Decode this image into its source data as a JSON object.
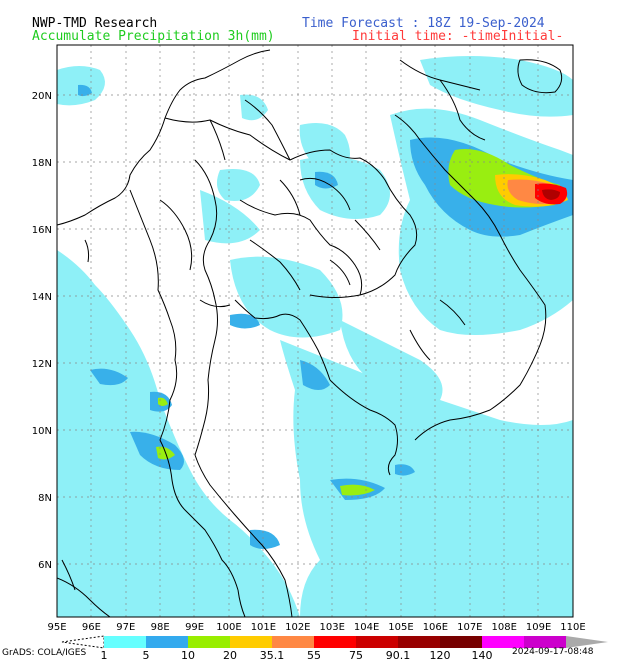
{
  "header": {
    "line1_left": "NWP-TMD Research",
    "line2_left": "Accumulate Precipitation 3h(mm)",
    "line1_right": "Time Forecast : 18Z 19-Sep-2024",
    "line2_right": "Initial time: -timeInitial-"
  },
  "colors": {
    "line1_left": "#000000",
    "line2_left": "#1fcc1f",
    "line1_right": "#3a5fcd",
    "line2_right": "#ff3a3a"
  },
  "map": {
    "lat_labels": [
      "20N",
      "18N",
      "16N",
      "14N",
      "12N",
      "10N",
      "8N",
      "6N"
    ],
    "lon_labels": [
      "95E",
      "96E",
      "97E",
      "98E",
      "99E",
      "100E",
      "101E",
      "102E",
      "103E",
      "104E",
      "105E",
      "106E",
      "107E",
      "108E",
      "109E",
      "110E"
    ]
  },
  "colorbar": {
    "colors": [
      "#ffffff",
      "#66ffff",
      "#33aaee",
      "#99ee00",
      "#ffcc00",
      "#ff8844",
      "#ff0000",
      "#cc0000",
      "#990000",
      "#770000",
      "#ff00ff",
      "#cc00cc",
      "#aaaaaa"
    ],
    "labels": [
      "1",
      "5",
      "10",
      "20",
      "35.1",
      "55",
      "75",
      "90.1",
      "120",
      "140"
    ]
  },
  "footer": {
    "grads": "GrADS: COLA/IGES",
    "timestamp": "2024-09-17-08:48"
  }
}
